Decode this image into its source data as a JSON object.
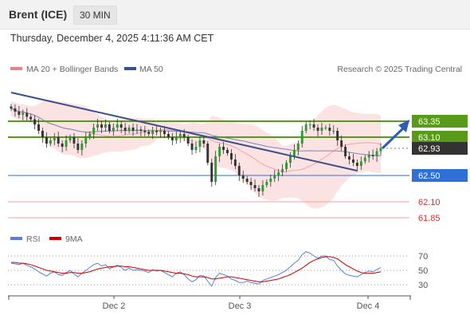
{
  "header": {
    "instrument": "Brent (ICE)",
    "timeframe": "30 MIN",
    "datetime": "Thursday, December 4, 2025 4:11:36 AM CET"
  },
  "legend": {
    "bollinger": "MA 20 + Bollinger Bands",
    "ma50": "MA 50",
    "source": "Research © 2025 Trading Central",
    "rsi": "RSI",
    "rsi_ma": "9MA"
  },
  "colors": {
    "bollinger": "#f08080",
    "ma50": "#3a4e8c",
    "resistance": "#5a9a1a",
    "support": "#2f6fd6",
    "target": "#e06060",
    "current": "#333333",
    "rsi": "#5b7fd6",
    "rsi_ma": "#cc0000"
  },
  "chart_data": [
    {
      "type": "candlestick",
      "title": "Brent (ICE)",
      "timeframe": "30 MIN",
      "x_ticks": [
        "Dec 2",
        "Dec 3",
        "Dec 4"
      ],
      "ylim": [
        61.5,
        63.7
      ],
      "levels": [
        {
          "value": 63.35,
          "label": "63.35",
          "kind": "resistance"
        },
        {
          "value": 63.1,
          "label": "63.10",
          "kind": "resistance"
        },
        {
          "value": 62.93,
          "label": "62.93",
          "kind": "current"
        },
        {
          "value": 62.5,
          "label": "62.50",
          "kind": "support"
        },
        {
          "value": 62.1,
          "label": "62.10",
          "kind": "target"
        },
        {
          "value": 61.85,
          "label": "61.85",
          "kind": "target"
        }
      ],
      "close_approx": [
        63.55,
        63.5,
        63.45,
        63.48,
        63.42,
        63.38,
        63.3,
        63.2,
        63.1,
        63.0,
        63.05,
        63.1,
        63.0,
        62.95,
        63.05,
        63.1,
        63.0,
        62.9,
        63.0,
        63.1,
        63.15,
        63.25,
        63.3,
        63.25,
        63.3,
        63.2,
        63.25,
        63.3,
        63.25,
        63.2,
        63.25,
        63.2,
        63.22,
        63.2,
        63.18,
        63.15,
        63.2,
        63.18,
        63.2,
        63.15,
        63.1,
        63.05,
        63.1,
        63.15,
        63.1,
        63.0,
        62.9,
        62.95,
        63.05,
        63.0,
        62.7,
        62.4,
        62.8,
        62.95,
        62.9,
        62.85,
        62.75,
        62.65,
        62.5,
        62.45,
        62.4,
        62.35,
        62.3,
        62.25,
        62.35,
        62.4,
        62.45,
        62.5,
        62.55,
        62.6,
        62.7,
        62.8,
        62.9,
        63.0,
        63.2,
        63.3,
        63.3,
        63.25,
        63.2,
        63.25,
        63.25,
        63.2,
        63.2,
        63.05,
        62.95,
        62.8,
        62.75,
        62.7,
        62.65,
        62.72,
        62.78,
        62.82,
        62.8,
        62.88,
        62.93
      ]
    },
    {
      "type": "line",
      "title": "RSI",
      "series": [
        {
          "name": "RSI"
        },
        {
          "name": "9MA"
        }
      ],
      "y_ticks": [
        70,
        50,
        30
      ],
      "ylim": [
        20,
        85
      ],
      "rsi_approx": [
        60,
        59,
        58,
        60,
        57,
        55,
        52,
        48,
        45,
        42,
        46,
        48,
        44,
        43,
        47,
        50,
        45,
        41,
        46,
        50,
        54,
        58,
        60,
        56,
        58,
        52,
        55,
        57,
        54,
        50,
        53,
        50,
        51,
        50,
        49,
        47,
        51,
        49,
        50,
        47,
        44,
        41,
        46,
        48,
        44,
        38,
        34,
        37,
        43,
        42,
        35,
        28,
        40,
        46,
        44,
        42,
        38,
        36,
        33,
        33,
        35,
        33,
        32,
        31,
        36,
        38,
        40,
        42,
        44,
        47,
        50,
        55,
        60,
        64,
        72,
        76,
        74,
        70,
        67,
        70,
        70,
        65,
        64,
        56,
        50,
        45,
        43,
        42,
        41,
        44,
        47,
        49,
        48,
        51,
        54
      ],
      "ma_approx": [
        61,
        61,
        60,
        60,
        59,
        58,
        56,
        54,
        52,
        50,
        49,
        48,
        47,
        46,
        46,
        47,
        47,
        46,
        46,
        47,
        48,
        50,
        52,
        53,
        54,
        55,
        55,
        56,
        56,
        55,
        55,
        54,
        53,
        52,
        51,
        50,
        50,
        50,
        50,
        49,
        48,
        47,
        46,
        46,
        45,
        44,
        42,
        41,
        41,
        41,
        40,
        38,
        38,
        39,
        40,
        41,
        41,
        40,
        39,
        38,
        37,
        36,
        35,
        34,
        34,
        35,
        36,
        37,
        38,
        40,
        42,
        44,
        47,
        50,
        53,
        57,
        61,
        64,
        66,
        68,
        69,
        69,
        68,
        66,
        62,
        58,
        55,
        52,
        49,
        47,
        46,
        46,
        46,
        47,
        48
      ]
    }
  ]
}
